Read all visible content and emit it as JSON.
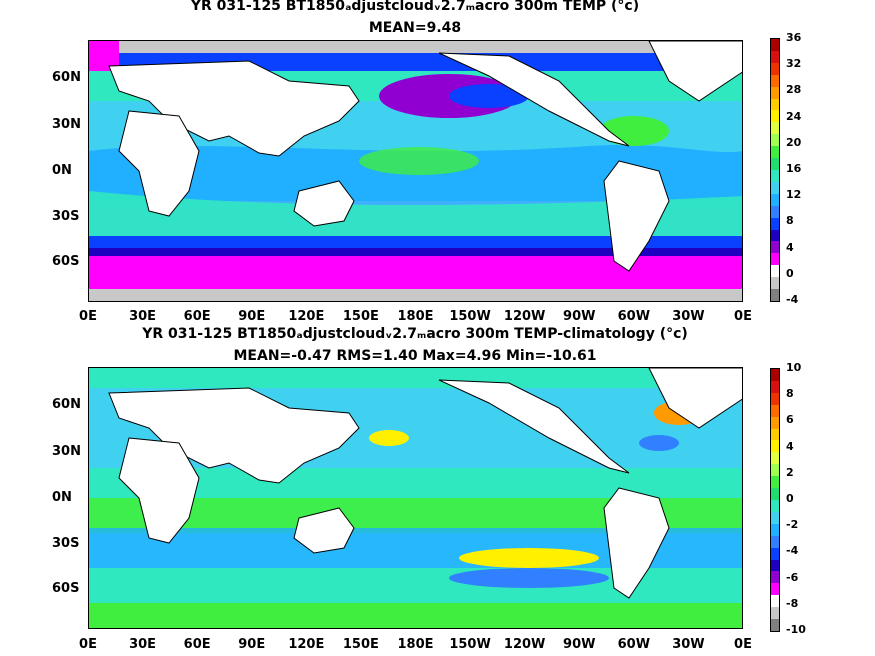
{
  "top": {
    "title_line1": "YR 031-125 BT1850ₐdjustcloudᵥ2.7ₘacro 300m TEMP (°c)",
    "title_line2": "MEAN=9.48",
    "colorbar_labels": [
      "36",
      "32",
      "28",
      "24",
      "20",
      "16",
      "12",
      "8",
      "4",
      "0",
      "-4"
    ],
    "colorbar_colors": [
      "#aa0000",
      "#d81010",
      "#ee3300",
      "#ff6a00",
      "#ff9a00",
      "#ffcc00",
      "#fff000",
      "#e0ff40",
      "#a0ff50",
      "#40ee40",
      "#20dd70",
      "#30e8c0",
      "#40d0f0",
      "#20b0ff",
      "#3080ff",
      "#0a40ff",
      "#2000c0",
      "#9000d0",
      "#ff00ff",
      "#ffffff",
      "#c8c8c8",
      "#808080"
    ]
  },
  "bottom": {
    "title_line1": "YR 031-125 BT1850ₐdjustcloudᵥ2.7ₘacro 300m TEMP-climatology (°c)",
    "title_line2": "MEAN=-0.47   RMS=1.40   Max=4.96   Min=-10.61",
    "colorbar_labels": [
      "10",
      "8",
      "6",
      "4",
      "2",
      "0",
      "-2",
      "-4",
      "-6",
      "-8",
      "-10"
    ],
    "colorbar_colors": [
      "#aa0000",
      "#d81010",
      "#ee3300",
      "#ff6a00",
      "#ff9a00",
      "#ffcc00",
      "#fff000",
      "#e0ff40",
      "#a0ff50",
      "#40ee40",
      "#20dd70",
      "#30e8c0",
      "#40d0f0",
      "#20b0ff",
      "#3080ff",
      "#0a40ff",
      "#2000c0",
      "#9000d0",
      "#ff00ff",
      "#ffffff",
      "#c8c8c8",
      "#808080"
    ]
  },
  "x_ticks": [
    "0E",
    "30E",
    "60E",
    "90E",
    "120E",
    "150E",
    "180E",
    "150W",
    "120W",
    "90W",
    "60W",
    "30W",
    "0E"
  ],
  "y_ticks": [
    "60N",
    "30N",
    "0N",
    "30S",
    "60S"
  ]
}
